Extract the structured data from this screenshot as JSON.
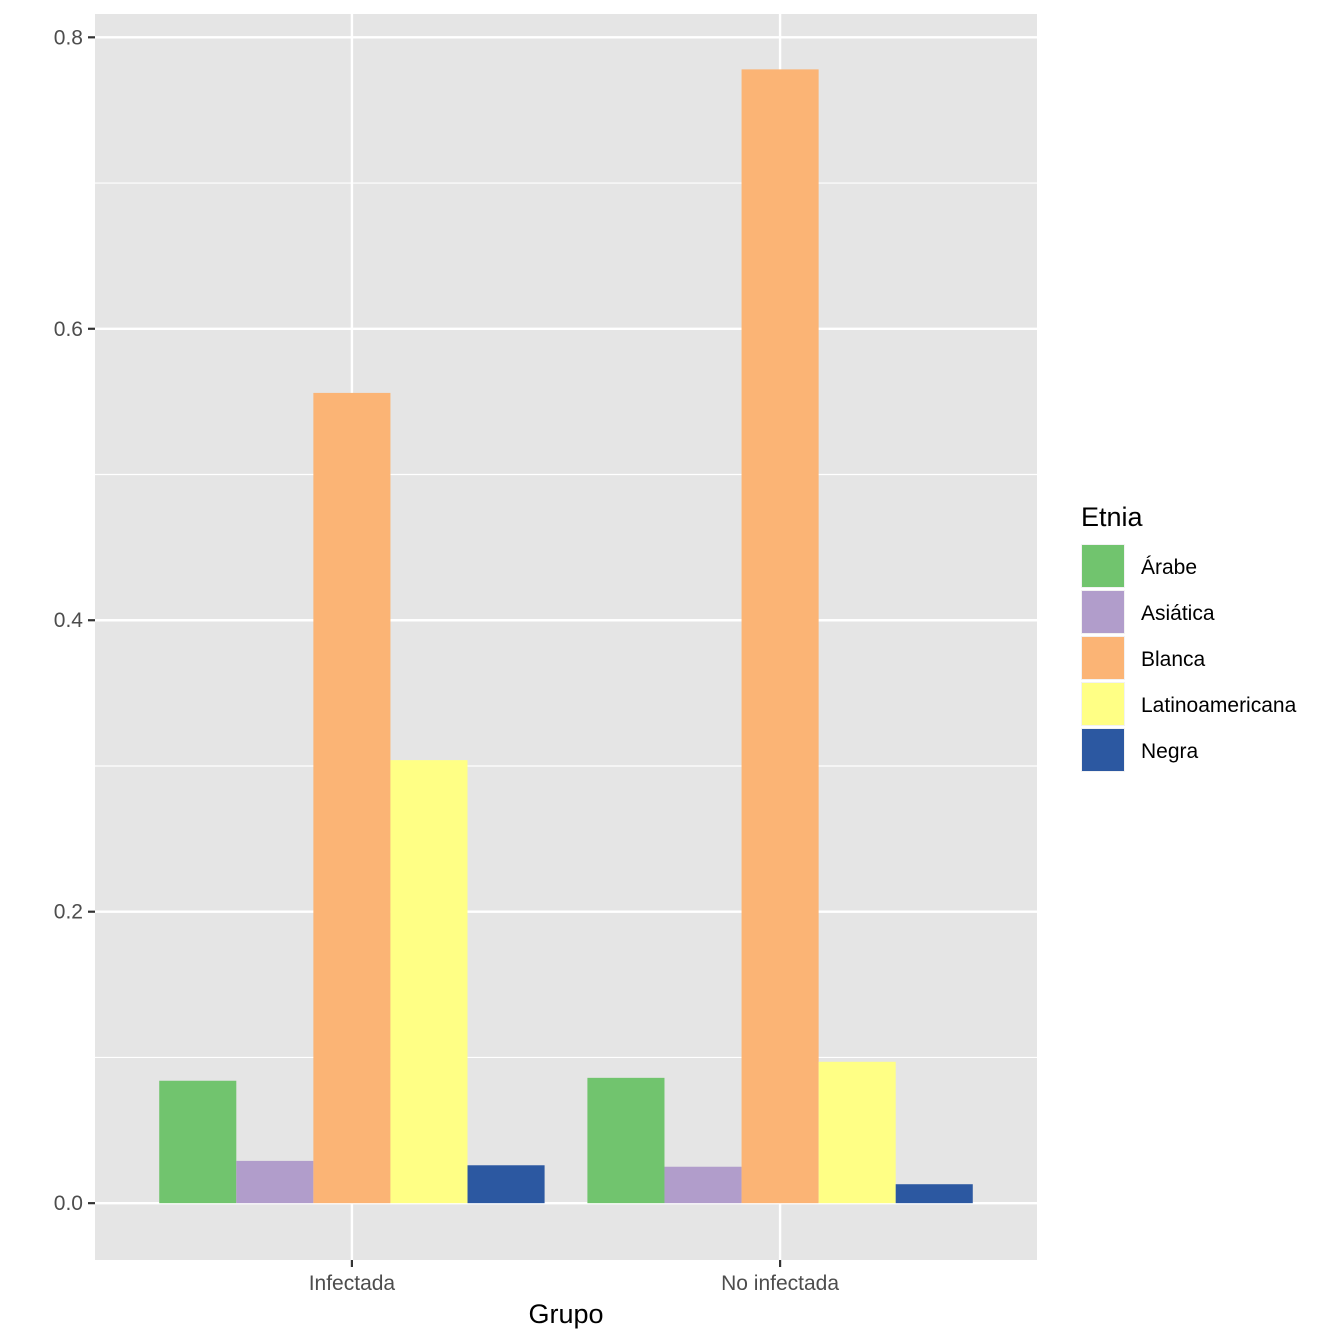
{
  "chart_data": {
    "type": "bar",
    "title": "",
    "xlabel": "Grupo",
    "ylabel": "",
    "categories": [
      "Infectada",
      "No infectada"
    ],
    "series": [
      {
        "name": "Árabe",
        "color": "#71c46e",
        "values": [
          0.084,
          0.086
        ]
      },
      {
        "name": "Asiática",
        "color": "#b19dcb",
        "values": [
          0.029,
          0.025
        ]
      },
      {
        "name": "Blanca",
        "color": "#fbb475",
        "values": [
          0.556,
          0.778
        ]
      },
      {
        "name": "Latinoamericana",
        "color": "#ffff85",
        "values": [
          0.304,
          0.097
        ]
      },
      {
        "name": "Negra",
        "color": "#2c58a1",
        "values": [
          0.026,
          0.013
        ]
      }
    ],
    "ylim": [
      -0.039,
      0.816
    ],
    "yticks": [
      "0.0",
      "0.2",
      "0.4",
      "0.6",
      "0.8"
    ],
    "ytick_values": [
      0.0,
      0.2,
      0.4,
      0.6,
      0.8
    ],
    "legend": {
      "title": "Etnia",
      "position": "right"
    },
    "grid": true,
    "panel_color": "#e5e5e5"
  }
}
